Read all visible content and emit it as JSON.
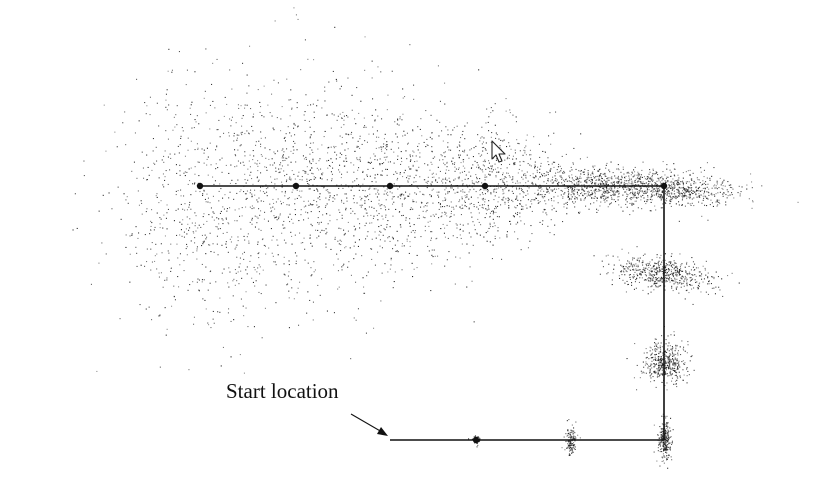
{
  "annotation": {
    "start_label": "Start location"
  },
  "colors": {
    "background": "#ffffff",
    "particle": "#1a1a1a",
    "path": "#111111",
    "cursor_fill": "#ffffff",
    "cursor_stroke": "#222222"
  },
  "cursor": {
    "icon": "arrow-pointer-icon"
  }
}
